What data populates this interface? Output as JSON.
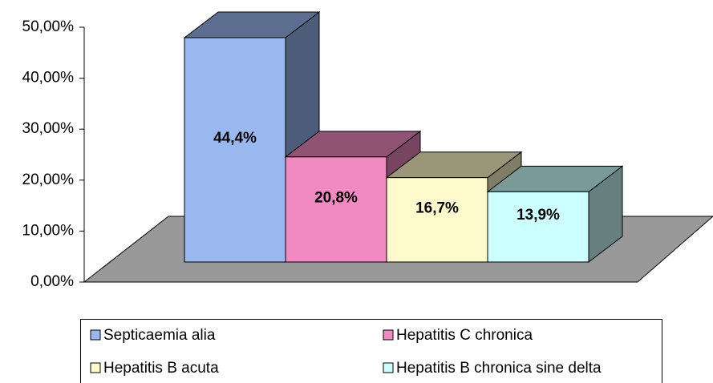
{
  "chart_data": {
    "type": "bar3d",
    "series": [
      {
        "name": "Septicaemia alia",
        "color": "#9ab8f0",
        "values": [
          44.4
        ],
        "value_labels": [
          "44,4%"
        ]
      },
      {
        "name": "Hepatitis C chronica",
        "color": "#f08ac0",
        "values": [
          20.8
        ],
        "value_labels": [
          "20,8%"
        ]
      },
      {
        "name": "Hepatitis B acuta",
        "color": "#fffacc",
        "values": [
          16.7
        ],
        "value_labels": [
          "16,7%"
        ]
      },
      {
        "name": "Hepatitis B chronica sine delta",
        "color": "#ccffff",
        "values": [
          13.9
        ],
        "value_labels": [
          "13,9%"
        ]
      }
    ],
    "ylim": [
      0,
      50
    ],
    "yticks": [
      {
        "value": 0,
        "label": "0,00%"
      },
      {
        "value": 10,
        "label": "10,00%"
      },
      {
        "value": 20,
        "label": "20,00%"
      },
      {
        "value": 30,
        "label": "30,00%"
      },
      {
        "value": 40,
        "label": "40,00%"
      },
      {
        "value": 50,
        "label": "50,00%"
      }
    ]
  }
}
